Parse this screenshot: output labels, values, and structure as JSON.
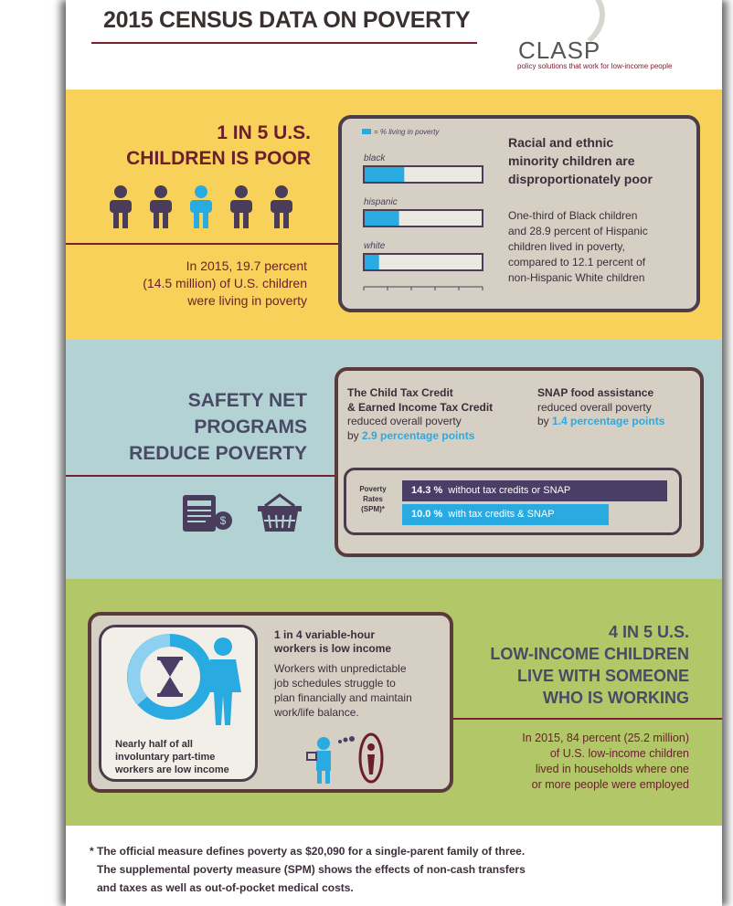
{
  "header": {
    "title": "2015 CENSUS DATA ON POVERTY",
    "logo_text": "CLASP",
    "logo_tagline": "policy solutions that work for low-income people"
  },
  "section1": {
    "heading_line1": "1 IN 5 U.S.",
    "heading_line2": "CHILDREN IS POOR",
    "body_line1": "In 2015, 19.7 percent",
    "body_line2": "(14.5 million) of U.S. children",
    "body_line3": "were living in poverty",
    "legend": "= % living in poverty",
    "box_title_line1": "Racial and ethnic",
    "box_title_line2": "minority children are",
    "box_title_line3": "disproportionately poor",
    "box_body_line1": "One-third of Black children",
    "box_body_line2": "and 28.9 percent of Hispanic",
    "box_body_line3": "children lived in poverty,",
    "box_body_line4": "compared to 12.1 percent of",
    "box_body_line5": "non-Hispanic White children"
  },
  "chart_data": {
    "type": "bar",
    "categories": [
      "black",
      "hispanic",
      "white"
    ],
    "values": [
      33.3,
      28.9,
      12.1
    ],
    "xlim": [
      0,
      100
    ],
    "legend": "= % living in poverty"
  },
  "section2": {
    "heading_line1": "SAFETY NET",
    "heading_line2": "PROGRAMS",
    "heading_line3": "REDUCE POVERTY",
    "ctc_line1": "The Child Tax Credit",
    "ctc_line2": "& Earned Income Tax Credit",
    "ctc_line3": "reduced overall poverty",
    "ctc_by": "by ",
    "ctc_value": "2.9 percentage points",
    "snap_line1": "SNAP food assistance",
    "snap_line2": "reduced overall poverty",
    "snap_by": "by ",
    "snap_value": "1.4 percentage points",
    "rates_label_line1": "Poverty",
    "rates_label_line2": "Rates",
    "rates_label_line3": "(SPM)*",
    "bar1_value": "14.3 %",
    "bar1_text": "without tax credits or SNAP",
    "bar2_value": "10.0 %",
    "bar2_text": "with tax credits & SNAP",
    "taxes_label": "TAXES"
  },
  "section3": {
    "box_title_line1": "1 in 4 variable-hour",
    "box_title_line2": "workers is low income",
    "box_body_line1": "Workers with unpredictable",
    "box_body_line2": "job schedules struggle to",
    "box_body_line3": "plan financially and maintain",
    "box_body_line4": "work/life balance.",
    "inner_line1": "Nearly half of all",
    "inner_line2": "involuntary part-time",
    "inner_line3": "workers are low income",
    "heading_line1": "4 IN 5 U.S.",
    "heading_line2": "LOW-INCOME CHILDREN",
    "heading_line3": "LIVE WITH SOMEONE",
    "heading_line4": "WHO IS WORKING",
    "body_line1": "In 2015, 84 percent (25.2 million)",
    "body_line2": "of U.S. low-income children",
    "body_line3": "lived  in households where one",
    "body_line4": "or more people were employed"
  },
  "footnote": {
    "line1": "* The official measure defines poverty as $20,090 for a single-parent family of three.",
    "line2": "The supplemental poverty measure (SPM) shows the effects of non-cash transfers",
    "line3": "and taxes as well as out-of-pocket medical costs."
  },
  "colors": {
    "maroon": "#6b1f2b",
    "yellow": "#f8d15a",
    "blue_band": "#b2d2d4",
    "green": "#b1c768",
    "bar_blue": "#29abe2",
    "purple": "#4a3d66",
    "box_bg": "#d6cfc4"
  }
}
